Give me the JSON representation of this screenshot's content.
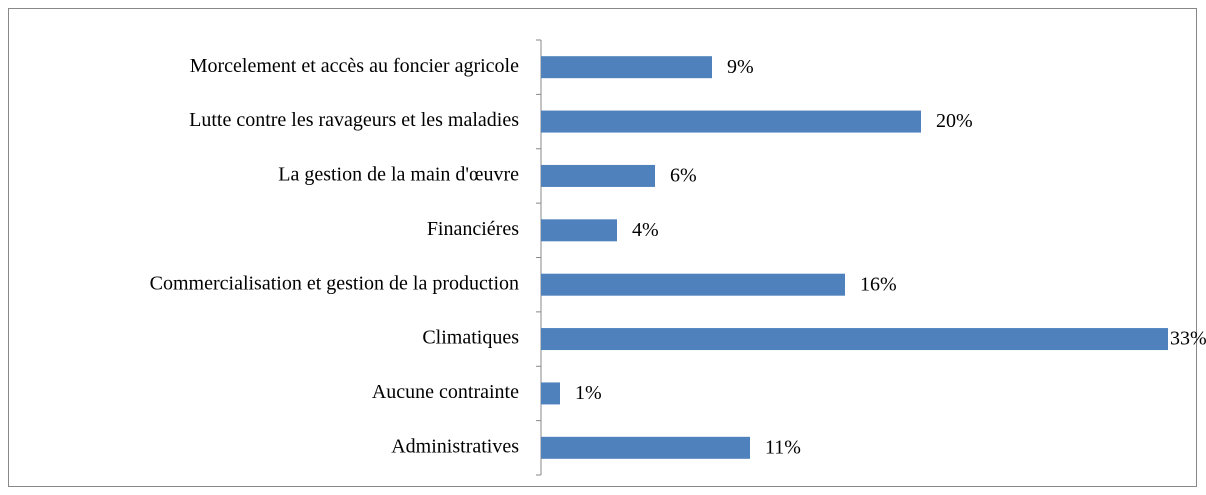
{
  "chart_data": {
    "type": "bar",
    "orientation": "horizontal",
    "color": "#4f81bd",
    "categories": [
      "Morcelement et accès au foncier agricole",
      "Lutte contre les ravageurs et les maladies",
      "La gestion de la main d'œuvre",
      "Financiéres",
      "Commercialisation et gestion de la production",
      "Climatiques",
      "Aucune contrainte",
      "Administratives"
    ],
    "values": [
      9,
      20,
      6,
      4,
      16,
      33,
      1,
      11
    ],
    "value_labels": [
      "9%",
      "20%",
      "6%",
      "4%",
      "16%",
      "33%",
      "1%",
      "11%"
    ]
  }
}
